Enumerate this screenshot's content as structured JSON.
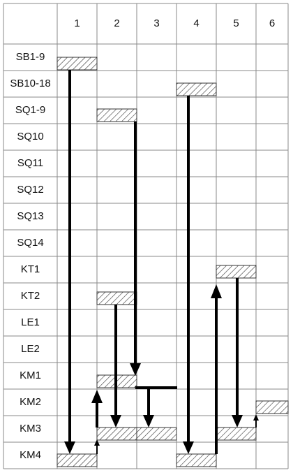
{
  "header": {
    "columns": [
      "1",
      "2",
      "3",
      "4",
      "5",
      "6"
    ]
  },
  "rows": [
    "SB1-9",
    "SB10-18",
    "SQ1-9",
    "SQ10",
    "SQ11",
    "SQ12",
    "SQ13",
    "SQ14",
    "KT1",
    "KT2",
    "LE1",
    "LE2",
    "KM1",
    "KM2",
    "KM3",
    "KM4"
  ]
}
